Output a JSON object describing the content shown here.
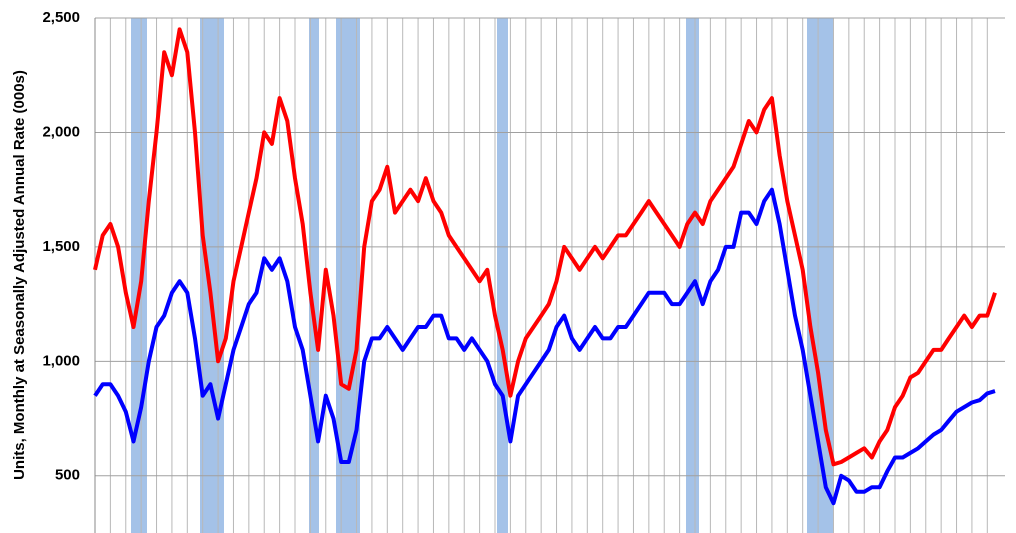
{
  "chart_data": {
    "type": "line",
    "y_label": "Units, Monthly at Seasonally Adjusted Annual Rate (000s)",
    "ylim": [
      250,
      2500
    ],
    "yticks": [
      {
        "value": 500,
        "label": "500"
      },
      {
        "value": 1000,
        "label": "1,000"
      },
      {
        "value": 1500,
        "label": "1,500"
      },
      {
        "value": 2000,
        "label": "2,000"
      },
      {
        "value": 2500,
        "label": "2,500"
      }
    ],
    "grid": true,
    "series": [
      {
        "color": "#ff0000",
        "values": [
          1400,
          1550,
          1600,
          1500,
          1300,
          1150,
          1350,
          1700,
          2000,
          2350,
          2250,
          2450,
          2350,
          2000,
          1550,
          1300,
          1000,
          1100,
          1350,
          1500,
          1650,
          1800,
          2000,
          1950,
          2150,
          2050,
          1800,
          1600,
          1300,
          1050,
          1400,
          1200,
          900,
          880,
          1050,
          1500,
          1700,
          1750,
          1850,
          1650,
          1700,
          1750,
          1700,
          1800,
          1700,
          1650,
          1550,
          1500,
          1450,
          1400,
          1350,
          1400,
          1200,
          1050,
          850,
          1000,
          1100,
          1150,
          1200,
          1250,
          1350,
          1500,
          1450,
          1400,
          1450,
          1500,
          1450,
          1500,
          1550,
          1550,
          1600,
          1650,
          1700,
          1650,
          1600,
          1550,
          1500,
          1600,
          1650,
          1600,
          1700,
          1750,
          1800,
          1850,
          1950,
          2050,
          2000,
          2100,
          2150,
          1900,
          1700,
          1550,
          1400,
          1150,
          950,
          700,
          550,
          560,
          580,
          600,
          620,
          580,
          650,
          700,
          800,
          850,
          930,
          950,
          1000,
          1050,
          1050,
          1100,
          1150,
          1200,
          1150,
          1200,
          1200,
          1300
        ]
      },
      {
        "color": "#0000ff",
        "values": [
          850,
          900,
          900,
          850,
          780,
          650,
          800,
          1000,
          1150,
          1200,
          1300,
          1350,
          1300,
          1100,
          850,
          900,
          750,
          900,
          1050,
          1150,
          1250,
          1300,
          1450,
          1400,
          1450,
          1350,
          1150,
          1050,
          850,
          650,
          850,
          750,
          560,
          560,
          700,
          1000,
          1100,
          1100,
          1150,
          1100,
          1050,
          1100,
          1150,
          1150,
          1200,
          1200,
          1100,
          1100,
          1050,
          1100,
          1050,
          1000,
          900,
          850,
          650,
          850,
          900,
          950,
          1000,
          1050,
          1150,
          1200,
          1100,
          1050,
          1100,
          1150,
          1100,
          1100,
          1150,
          1150,
          1200,
          1250,
          1300,
          1300,
          1300,
          1250,
          1250,
          1300,
          1350,
          1250,
          1350,
          1400,
          1500,
          1500,
          1650,
          1650,
          1600,
          1700,
          1750,
          1600,
          1400,
          1200,
          1050,
          850,
          650,
          450,
          380,
          500,
          480,
          430,
          430,
          450,
          450,
          520,
          580,
          580,
          600,
          620,
          650,
          680,
          700,
          740,
          780,
          800,
          820,
          830,
          860,
          870
        ]
      }
    ]
  }
}
